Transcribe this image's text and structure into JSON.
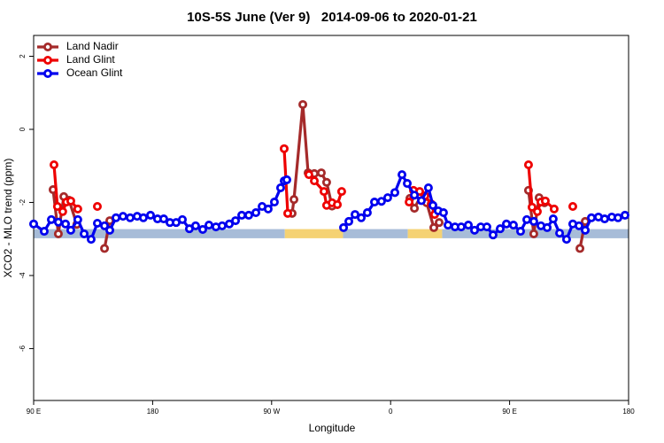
{
  "chart_data": {
    "type": "line",
    "title": "10S-5S June (Ver 9)   2014-09-06 to 2020-01-21",
    "xlabel": "Longitude",
    "ylabel": "XCO2 - MLO trend (ppm)",
    "xlim": [
      90,
      540
    ],
    "ylim": [
      -7.42,
      2.57
    ],
    "xticks": [
      {
        "value": 90,
        "label": "90 E"
      },
      {
        "value": 180,
        "label": "180"
      },
      {
        "value": 270,
        "label": "90 W"
      },
      {
        "value": 360,
        "label": "0"
      },
      {
        "value": 450,
        "label": "90 E"
      },
      {
        "value": 540,
        "label": "180"
      }
    ],
    "yticks": [
      2,
      0,
      -2,
      -4,
      -6
    ],
    "legend": "top-left",
    "band_ylim": [
      -2.98,
      -2.73
    ],
    "regions": [
      {
        "x": [
          90,
          280
        ],
        "color": "#a7bcd8"
      },
      {
        "x": [
          280,
          324
        ],
        "color": "#f5d273"
      },
      {
        "x": [
          324,
          373
        ],
        "color": "#a7bcd8"
      },
      {
        "x": [
          373,
          399
        ],
        "color": "#f5d273"
      },
      {
        "x": [
          399,
          540
        ],
        "color": "#a7bcd8"
      }
    ],
    "series": [
      {
        "name": "Land Nadir",
        "color": "#a52a2a",
        "x": [
          104.7,
          108.7,
          112.8,
          116.8,
          122.7,
          null,
          143.6,
          147.6,
          null,
          285.5,
          286.9,
          293.6,
          297.6,
          302.3,
          307.6,
          311.6,
          315.7,
          null,
          374.6,
          378,
          382.6,
          387.3,
          392.7,
          396.7,
          null,
          464.3,
          468.3,
          472.3,
          476.4,
          null,
          503.2,
          507.2
        ],
        "values": [
          -1.65,
          -2.86,
          -1.84,
          -1.94,
          -2.6,
          null,
          -3.26,
          -2.5,
          null,
          -2.3,
          -1.92,
          0.68,
          -1.19,
          -1.21,
          -1.19,
          -1.45,
          -2.1,
          null,
          -1.89,
          -2.16,
          -1.84,
          -2.01,
          -2.69,
          -2.55,
          null,
          -1.67,
          -2.86,
          -1.87,
          -2.01,
          null,
          -3.26,
          -2.52
        ]
      },
      {
        "name": "Land Glint",
        "color": "#ee0000",
        "x": [
          105.4,
          108,
          112,
          114.8,
          118.1,
          123.4,
          null,
          138.2,
          null,
          279.5,
          282.2,
          null,
          298.2,
          302.3,
          309.6,
          311.6,
          315.7,
          319.7,
          323,
          null,
          374,
          377.3,
          382,
          386,
          390.7,
          393.3,
          null,
          464.3,
          467,
          471,
          473.7,
          477,
          483.7,
          null,
          497.8
        ],
        "values": [
          -0.97,
          -2.11,
          -2.25,
          -1.99,
          -1.96,
          -2.18,
          null,
          -2.11,
          null,
          -0.53,
          -2.3,
          null,
          -1.24,
          -1.41,
          -1.7,
          -2.08,
          -2.01,
          -2.06,
          -1.7,
          null,
          -1.99,
          -1.67,
          -1.7,
          -1.82,
          -2.04,
          -2.33,
          null,
          -0.97,
          -2.13,
          -2.25,
          -1.99,
          -1.96,
          -2.18,
          null,
          -2.11
        ]
      },
      {
        "name": "Ocean Glint",
        "color": "#0000ee",
        "x": [
          90,
          98,
          103.4,
          108.7,
          114.1,
          118.1,
          123.4,
          128.2,
          133.5,
          138.2,
          143.6,
          147.6,
          152.3,
          157.6,
          163,
          168.3,
          173,
          178.4,
          183.7,
          188.4,
          193.1,
          197.8,
          202.5,
          207.8,
          212.5,
          217.9,
          222.6,
          227.9,
          232.6,
          238,
          242.7,
          247.4,
          252.7,
          258.1,
          262.8,
          267.4,
          272.1,
          276.8,
          279.5,
          281.5,
          null,
          324.4,
          328.4,
          333.1,
          337.8,
          342.4,
          347.8,
          353.1,
          357.8,
          363.2,
          368.6,
          372.6,
          378,
          383.3,
          388.6,
          392,
          396,
          400,
          403.4,
          408.7,
          413.4,
          418.8,
          423.5,
          428.2,
          432.8,
          437.5,
          442.9,
          447.6,
          452.9,
          458.3,
          463,
          468.3,
          473.7,
          478.4,
          483,
          487.8,
          493.1,
          497.8,
          502.5,
          507.2,
          511.9,
          517.2,
          521.9,
          527.3,
          532,
          537.3
        ],
        "values": [
          -2.59,
          -2.79,
          -2.47,
          -2.54,
          -2.59,
          -2.76,
          -2.47,
          -2.86,
          -3.01,
          -2.57,
          -2.64,
          -2.76,
          -2.42,
          -2.38,
          -2.42,
          -2.38,
          -2.42,
          -2.35,
          -2.45,
          -2.45,
          -2.55,
          -2.55,
          -2.47,
          -2.72,
          -2.64,
          -2.74,
          -2.62,
          -2.67,
          -2.64,
          -2.59,
          -2.5,
          -2.35,
          -2.35,
          -2.28,
          -2.11,
          -2.18,
          -1.99,
          -1.6,
          -1.41,
          -1.38,
          null,
          -2.69,
          -2.52,
          -2.33,
          -2.42,
          -2.28,
          -1.99,
          -1.97,
          -1.87,
          -1.73,
          -1.24,
          -1.48,
          -1.8,
          -1.95,
          -1.6,
          -2.08,
          -2.23,
          -2.28,
          -2.62,
          -2.67,
          -2.67,
          -2.62,
          -2.76,
          -2.67,
          -2.67,
          -2.89,
          -2.72,
          -2.59,
          -2.62,
          -2.79,
          -2.47,
          -2.52,
          -2.64,
          -2.69,
          -2.45,
          -2.84,
          -3.01,
          -2.59,
          -2.64,
          -2.76,
          -2.42,
          -2.4,
          -2.45,
          -2.4,
          -2.42,
          -2.35
        ]
      }
    ]
  }
}
